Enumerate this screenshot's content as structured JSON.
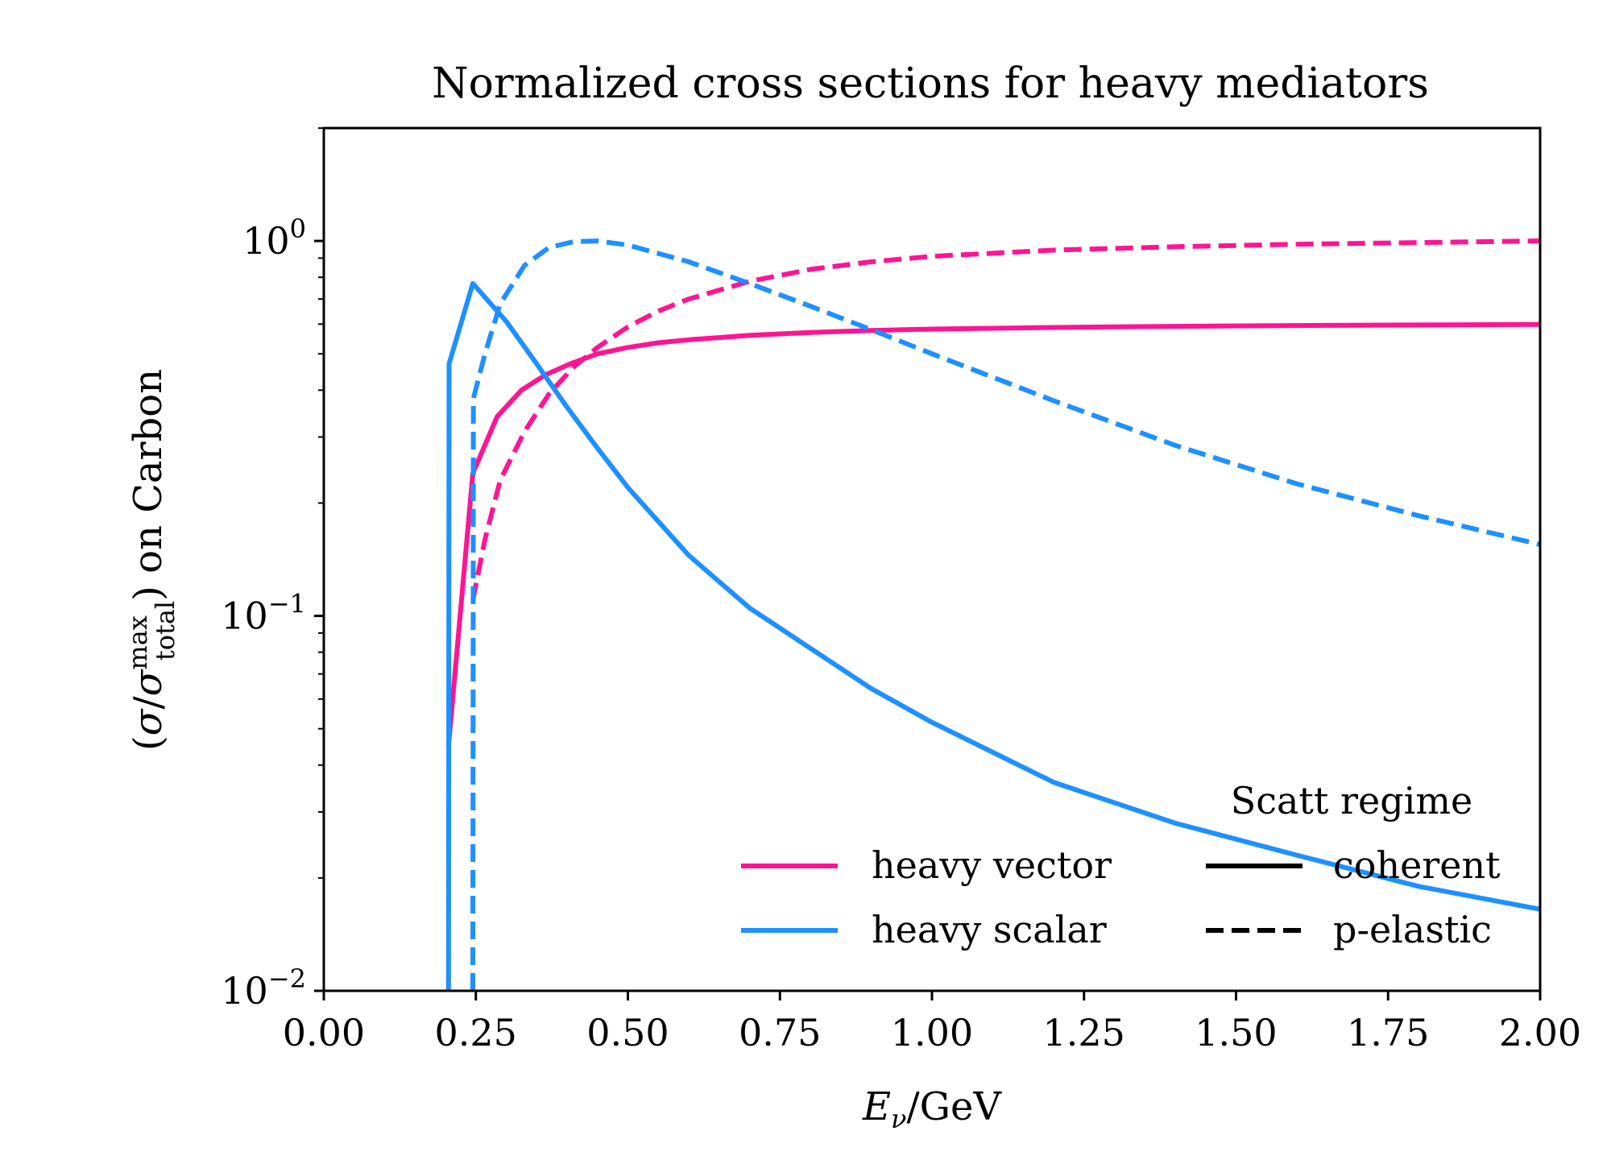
{
  "chart_data": {
    "type": "line",
    "title": "Normalized cross sections for heavy mediators",
    "xlabel": "E_ν/GeV",
    "ylabel": "(σ/σ_total^max) on Carbon",
    "xlim": [
      0,
      2
    ],
    "ylim": [
      0.01,
      2.0
    ],
    "yscale": "log",
    "grid": false,
    "x_ticks": [
      "0.00",
      "0.25",
      "0.50",
      "0.75",
      "1.00",
      "1.25",
      "1.50",
      "1.75",
      "2.00"
    ],
    "y_ticks": [
      {
        "base": "10",
        "exp": "0",
        "value": 1
      },
      {
        "base": "10",
        "exp": "−1",
        "value": 0.1
      },
      {
        "base": "10",
        "exp": "−2",
        "value": 0.01
      }
    ],
    "colors": {
      "heavy_vector": "#ff1493",
      "heavy_scalar": "#1e90ff",
      "axis": "#000000"
    },
    "legend": {
      "placement": "lower-right",
      "entries": [
        {
          "label": "heavy vector",
          "color": "#ff1493",
          "style": "solid"
        },
        {
          "label": "heavy scalar",
          "color": "#1e90ff",
          "style": "solid"
        }
      ],
      "regime_title": "Scatt regime",
      "regime_entries": [
        {
          "label": "coherent",
          "style": "solid"
        },
        {
          "label": "p-elastic",
          "style": "dashed"
        }
      ]
    },
    "series": [
      {
        "mediator": "heavy vector",
        "regime": "coherent",
        "color": "#ff1493",
        "style": "solid",
        "x": [
          0.205,
          0.245,
          0.285,
          0.325,
          0.365,
          0.405,
          0.45,
          0.5,
          0.55,
          0.6,
          0.7,
          0.8,
          0.9,
          1.0,
          1.2,
          1.4,
          1.6,
          1.8,
          2.0
        ],
        "y": [
          0.045,
          0.24,
          0.34,
          0.4,
          0.44,
          0.47,
          0.5,
          0.52,
          0.535,
          0.545,
          0.56,
          0.57,
          0.577,
          0.582,
          0.588,
          0.592,
          0.595,
          0.597,
          0.599
        ]
      },
      {
        "mediator": "heavy vector",
        "regime": "p-elastic",
        "color": "#ff1493",
        "style": "dashed",
        "x": [
          0.245,
          0.265,
          0.29,
          0.33,
          0.37,
          0.41,
          0.45,
          0.5,
          0.55,
          0.6,
          0.7,
          0.8,
          0.9,
          1.0,
          1.2,
          1.4,
          1.6,
          1.8,
          2.0
        ],
        "y": [
          0.11,
          0.16,
          0.23,
          0.31,
          0.39,
          0.46,
          0.52,
          0.59,
          0.65,
          0.7,
          0.78,
          0.84,
          0.88,
          0.91,
          0.945,
          0.965,
          0.98,
          0.99,
          1.0
        ]
      },
      {
        "mediator": "heavy scalar",
        "regime": "coherent",
        "color": "#1e90ff",
        "style": "solid",
        "x": [
          0.205,
          0.206,
          0.245,
          0.3,
          0.35,
          0.4,
          0.45,
          0.5,
          0.6,
          0.7,
          0.8,
          0.9,
          1.0,
          1.2,
          1.4,
          1.6,
          1.8,
          2.0
        ],
        "y": [
          0.01,
          0.47,
          0.77,
          0.61,
          0.47,
          0.36,
          0.28,
          0.22,
          0.145,
          0.105,
          0.082,
          0.064,
          0.052,
          0.036,
          0.028,
          0.023,
          0.019,
          0.0165
        ]
      },
      {
        "mediator": "heavy scalar",
        "regime": "p-elastic",
        "color": "#1e90ff",
        "style": "dashed",
        "x": [
          0.245,
          0.246,
          0.265,
          0.29,
          0.33,
          0.37,
          0.41,
          0.45,
          0.5,
          0.6,
          0.7,
          0.8,
          0.9,
          1.0,
          1.2,
          1.4,
          1.6,
          1.8,
          2.0
        ],
        "y": [
          0.01,
          0.38,
          0.5,
          0.68,
          0.86,
          0.96,
          0.995,
          1.0,
          0.975,
          0.88,
          0.77,
          0.67,
          0.58,
          0.5,
          0.375,
          0.285,
          0.225,
          0.185,
          0.155
        ]
      }
    ]
  }
}
